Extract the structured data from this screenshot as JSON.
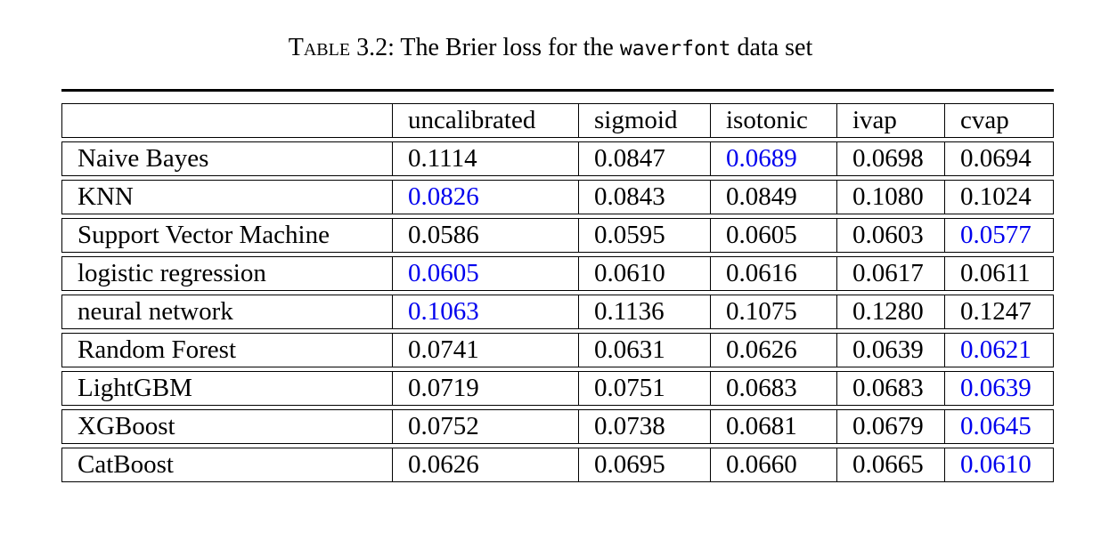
{
  "caption": {
    "label": "Table 3.2:",
    "text_before": "The Brier loss for the",
    "dataset": "waverfont",
    "text_after": "data set"
  },
  "highlight_color": "#0000ee",
  "table": {
    "headers": [
      "",
      "uncalibrated",
      "sigmoid",
      "isotonic",
      "ivap",
      "cvap"
    ],
    "rows": [
      {
        "model": "Naive Bayes",
        "values": [
          "0.1114",
          "0.0847",
          "0.0689",
          "0.0698",
          "0.0694"
        ],
        "best_index": 2
      },
      {
        "model": "KNN",
        "values": [
          "0.0826",
          "0.0843",
          "0.0849",
          "0.1080",
          "0.1024"
        ],
        "best_index": 0
      },
      {
        "model": "Support Vector Machine",
        "values": [
          "0.0586",
          "0.0595",
          "0.0605",
          "0.0603",
          "0.0577"
        ],
        "best_index": 4
      },
      {
        "model": "logistic regression",
        "values": [
          "0.0605",
          "0.0610",
          "0.0616",
          "0.0617",
          "0.0611"
        ],
        "best_index": 0
      },
      {
        "model": "neural network",
        "values": [
          "0.1063",
          "0.1136",
          "0.1075",
          "0.1280",
          "0.1247"
        ],
        "best_index": 0
      },
      {
        "model": "Random Forest",
        "values": [
          "0.0741",
          "0.0631",
          "0.0626",
          "0.0639",
          "0.0621"
        ],
        "best_index": 4
      },
      {
        "model": "LightGBM",
        "values": [
          "0.0719",
          "0.0751",
          "0.0683",
          "0.0683",
          "0.0639"
        ],
        "best_index": 4
      },
      {
        "model": "XGBoost",
        "values": [
          "0.0752",
          "0.0738",
          "0.0681",
          "0.0679",
          "0.0645"
        ],
        "best_index": 4
      },
      {
        "model": "CatBoost",
        "values": [
          "0.0626",
          "0.0695",
          "0.0660",
          "0.0665",
          "0.0610"
        ],
        "best_index": 4
      }
    ]
  }
}
